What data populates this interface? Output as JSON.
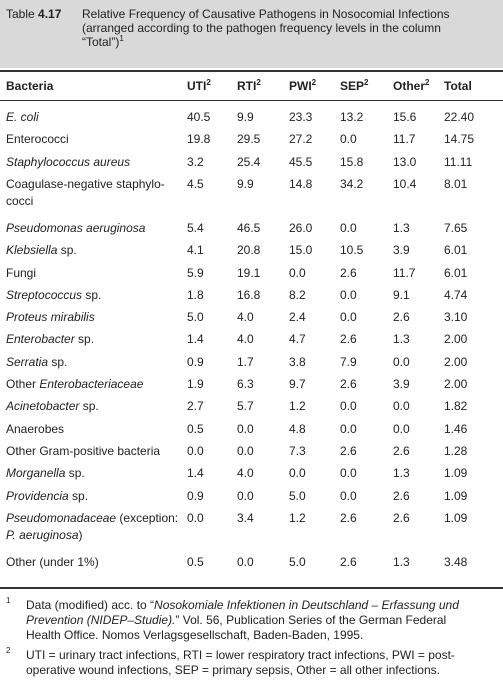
{
  "caption": {
    "label": "Table",
    "number": "4.17",
    "lines": [
      [
        "Relative Frequency of Causative Pathogens in Nosocomial Infections"
      ],
      [
        "(arranged according to the pathogen frequency levels in the column"
      ],
      [
        "“Total”)"
      ]
    ],
    "sup": "1"
  },
  "table": {
    "columns": [
      {
        "text": "Bacteria"
      },
      {
        "text": "UTI",
        "sup": "2"
      },
      {
        "text": "RTI",
        "sup": "2"
      },
      {
        "text": "PWI",
        "sup": "2"
      },
      {
        "text": "SEP",
        "sup": "2"
      },
      {
        "text": "Other",
        "sup": "2"
      },
      {
        "text": "Total"
      }
    ],
    "rows": [
      {
        "name": [
          [
            {
              "i": "E. coli"
            }
          ]
        ],
        "cells": [
          "40.5",
          "9.9",
          "23.3",
          "13.2",
          "15.6",
          "22.40"
        ]
      },
      {
        "name": [
          [
            "Enterococci"
          ]
        ],
        "cells": [
          "19.8",
          "29.5",
          "27.2",
          "0.0",
          "11.7",
          "14.75"
        ]
      },
      {
        "name": [
          [
            {
              "i": "Staphylococcus aureus"
            }
          ]
        ],
        "cells": [
          "3.2",
          "25.4",
          "45.5",
          "15.8",
          "13.0",
          "11.11"
        ]
      },
      {
        "name": [
          [
            "Coagulase-negative staphylo-"
          ],
          [
            "cocci"
          ]
        ],
        "cells": [
          "4.5",
          "9.9",
          "14.8",
          "34.2",
          "10.4",
          "8.01"
        ]
      },
      {
        "name": [
          [
            {
              "i": "Pseudomonas aeruginosa"
            }
          ]
        ],
        "cells": [
          "5.4",
          "46.5",
          "26.0",
          "0.0",
          "1.3",
          "7.65"
        ]
      },
      {
        "name": [
          [
            {
              "i": "Klebsiella"
            },
            " sp."
          ]
        ],
        "cells": [
          "4.1",
          "20.8",
          "15.0",
          "10.5",
          "3.9",
          "6.01"
        ]
      },
      {
        "name": [
          [
            "Fungi"
          ]
        ],
        "cells": [
          "5.9",
          "19.1",
          "0.0",
          "2.6",
          "11.7",
          "6.01"
        ]
      },
      {
        "name": [
          [
            {
              "i": "Streptococcus"
            },
            " sp."
          ]
        ],
        "cells": [
          "1.8",
          "16.8",
          "8.2",
          "0.0",
          "9.1",
          "4.74"
        ]
      },
      {
        "name": [
          [
            {
              "i": "Proteus mirabilis"
            }
          ]
        ],
        "cells": [
          "5.0",
          "4.0",
          "2.4",
          "0.0",
          "2.6",
          "3.10"
        ]
      },
      {
        "name": [
          [
            {
              "i": "Enterobacter"
            },
            " sp."
          ]
        ],
        "cells": [
          "1.4",
          "4.0",
          "4.7",
          "2.6",
          "1.3",
          "2.00"
        ]
      },
      {
        "name": [
          [
            {
              "i": "Serratia"
            },
            " sp."
          ]
        ],
        "cells": [
          "0.9",
          "1.7",
          "3.8",
          "7.9",
          "0.0",
          "2.00"
        ]
      },
      {
        "name": [
          [
            "Other ",
            {
              "i": "Enterobacteriaceae"
            }
          ]
        ],
        "cells": [
          "1.9",
          "6.3",
          "9.7",
          "2.6",
          "3.9",
          "2.00"
        ]
      },
      {
        "name": [
          [
            {
              "i": "Acinetobacter"
            },
            " sp."
          ]
        ],
        "cells": [
          "2.7",
          "5.7",
          "1.2",
          "0.0",
          "0.0",
          "1.82"
        ]
      },
      {
        "name": [
          [
            "Anaerobes"
          ]
        ],
        "cells": [
          "0.5",
          "0.0",
          "4.8",
          "0.0",
          "0.0",
          "1.46"
        ]
      },
      {
        "name": [
          [
            "Other Gram-positive bacteria"
          ]
        ],
        "cells": [
          "0.0",
          "0.0",
          "7.3",
          "2.6",
          "2.6",
          "1.28"
        ]
      },
      {
        "name": [
          [
            {
              "i": "Morganella"
            },
            " sp."
          ]
        ],
        "cells": [
          "1.4",
          "4.0",
          "0.0",
          "0.0",
          "1.3",
          "1.09"
        ]
      },
      {
        "name": [
          [
            {
              "i": "Providencia"
            },
            " sp."
          ]
        ],
        "cells": [
          "0.9",
          "0.0",
          "5.0",
          "0.0",
          "2.6",
          "1.09"
        ]
      },
      {
        "name": [
          [
            {
              "i": "Pseudomonadaceae"
            },
            " (exception:"
          ],
          [
            {
              "i": "P. aeruginosa"
            },
            ")"
          ]
        ],
        "cells": [
          "0.0",
          "3.4",
          "1.2",
          "2.6",
          "2.6",
          "1.09"
        ]
      },
      {
        "name": [
          [
            "Other (under 1%)"
          ]
        ],
        "cells": [
          "0.5",
          "0.0",
          "5.0",
          "2.6",
          "1.3",
          "3.48"
        ]
      }
    ]
  },
  "footnotes": [
    {
      "mark": "1",
      "lines": [
        [
          "Data (modified) acc. to “",
          {
            "i": "Nosokomiale Infektionen in Deutschland – Erfassung und"
          }
        ],
        [
          {
            "i": "Prevention (NIDEP–Studie)."
          },
          "” Vol. 56, Publication Series of the German Federal"
        ],
        [
          "Health Office. Nomos Verlagsgesellschaft, Baden-Baden, 1995."
        ]
      ]
    },
    {
      "mark": "2",
      "lines": [
        [
          "UTI = urinary tract infections, RTI = lower respiratory tract infections, PWI = post-"
        ],
        [
          "operative wound infections, SEP = primary sepsis, Other = all other infections."
        ]
      ]
    }
  ]
}
